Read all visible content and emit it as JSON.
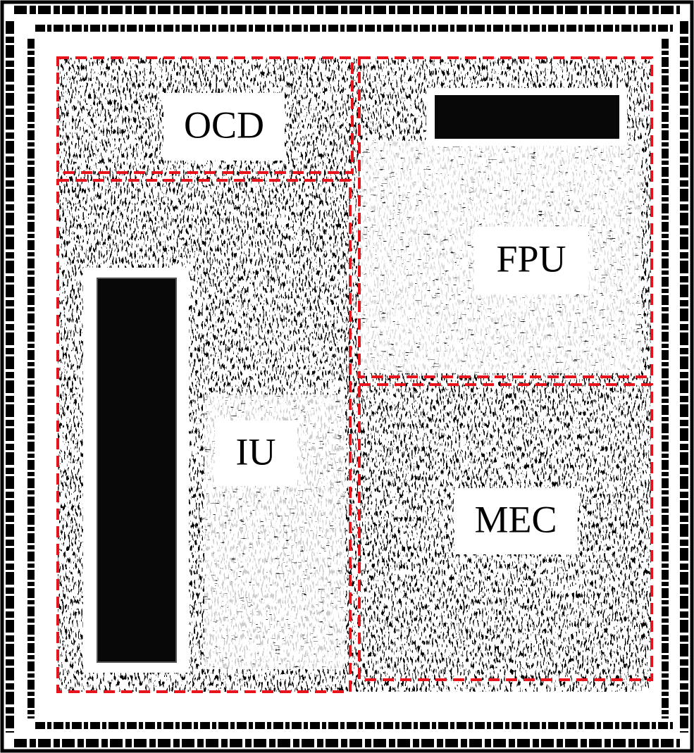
{
  "regions": [
    {
      "label": "OCD"
    },
    {
      "label": "FPU"
    },
    {
      "label": "IU"
    },
    {
      "label": "MEC"
    }
  ]
}
